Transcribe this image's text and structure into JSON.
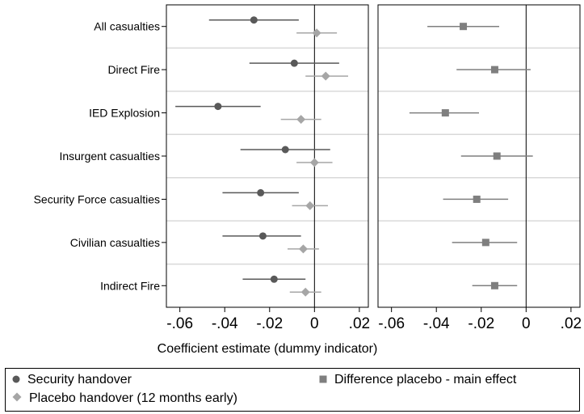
{
  "chart_data": [
    {
      "type": "scatter",
      "panel": "left",
      "categories": [
        "All casualties",
        "Direct Fire",
        "IED Explosion",
        "Insurgent casualties",
        "Security Force casualties",
        "Civilian casualties",
        "Indirect Fire"
      ],
      "xlim": [
        -0.066,
        0.024
      ],
      "xticks": [
        "-.06",
        "-.04",
        "-.02",
        "0",
        ".02"
      ],
      "xlabel": "Coefficient estimate (dummy indicator)",
      "grid": true,
      "series": [
        {
          "name": "Security handover",
          "color": "#595959",
          "marker": "circle",
          "estimates": [
            -0.027,
            -0.009,
            -0.043,
            -0.013,
            -0.024,
            -0.023,
            -0.018
          ],
          "ci_low": [
            -0.047,
            -0.029,
            -0.062,
            -0.033,
            -0.041,
            -0.041,
            -0.032
          ],
          "ci_high": [
            -0.007,
            0.011,
            -0.024,
            0.007,
            -0.007,
            -0.006,
            -0.004
          ]
        },
        {
          "name": "Placebo handover (12 months early)",
          "color": "#a6a6a6",
          "marker": "diamond",
          "estimates": [
            0.001,
            0.005,
            -0.006,
            0.0,
            -0.002,
            -0.005,
            -0.004
          ],
          "ci_low": [
            -0.008,
            -0.004,
            -0.015,
            -0.008,
            -0.01,
            -0.012,
            -0.011
          ],
          "ci_high": [
            0.01,
            0.015,
            0.003,
            0.008,
            0.006,
            0.002,
            0.003
          ]
        }
      ]
    },
    {
      "type": "scatter",
      "panel": "right",
      "categories": [
        "All casualties",
        "Direct Fire",
        "IED Explosion",
        "Insurgent casualties",
        "Security Force casualties",
        "Civilian casualties",
        "Indirect Fire"
      ],
      "xlim": [
        -0.066,
        0.024
      ],
      "xticks": [
        "-.06",
        "-.04",
        "-.02",
        "0",
        ".02"
      ],
      "grid": true,
      "series": [
        {
          "name": "Difference placebo - main effect",
          "color": "#7f7f7f",
          "marker": "square",
          "estimates": [
            -0.028,
            -0.014,
            -0.036,
            -0.013,
            -0.022,
            -0.018,
            -0.014
          ],
          "ci_low": [
            -0.044,
            -0.031,
            -0.052,
            -0.029,
            -0.037,
            -0.033,
            -0.024
          ],
          "ci_high": [
            -0.012,
            0.002,
            -0.021,
            0.003,
            -0.008,
            -0.004,
            -0.004
          ]
        }
      ]
    }
  ],
  "legend": {
    "placement": "bottom",
    "items": [
      {
        "label": "Security handover",
        "marker": "circle",
        "color": "#595959"
      },
      {
        "label": "Difference placebo - main effect",
        "marker": "square",
        "color": "#7f7f7f"
      },
      {
        "label": "Placebo handover (12 months early)",
        "marker": "diamond",
        "color": "#a6a6a6"
      }
    ]
  }
}
